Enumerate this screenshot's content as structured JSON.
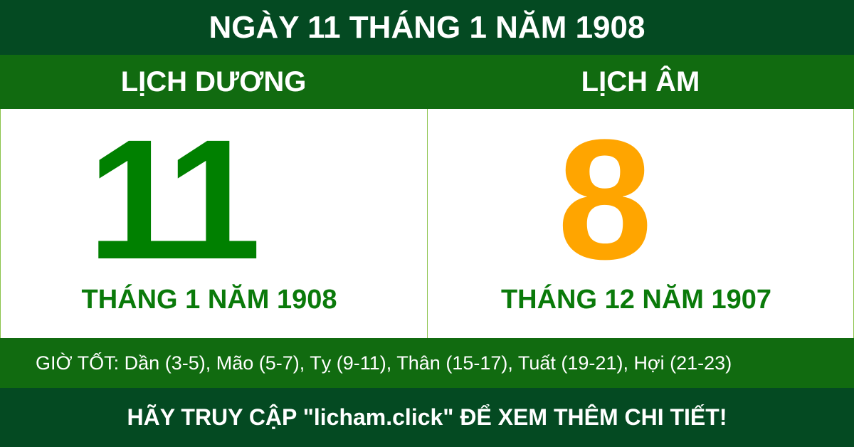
{
  "title": "NGÀY 11 THÁNG 1 NĂM 1908",
  "solar": {
    "heading": "LỊCH DƯƠNG",
    "day": "11",
    "month_year": "THÁNG 1 NĂM 1908"
  },
  "lunar": {
    "heading": "LỊCH ÂM",
    "day": "8",
    "month_year": "THÁNG 12 NĂM 1907"
  },
  "good_hours": "GIỜ TỐT: Dần (3-5), Mão (5-7), Tỵ (9-11), Thân (15-17), Tuất (19-21), Hợi (21-23)",
  "footer": "HÃY TRUY CẬP \"licham.click\" ĐỂ XEM THÊM CHI TIẾT!",
  "colors": {
    "dark_green": "#044a22",
    "green": "#116b10",
    "solar_number": "#008000",
    "lunar_number": "#ffa500"
  }
}
